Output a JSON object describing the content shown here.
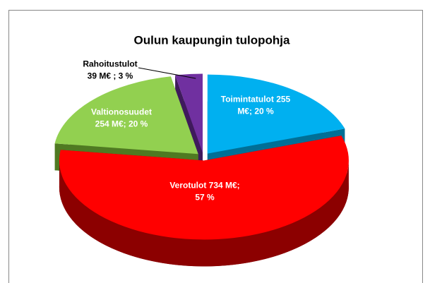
{
  "chart_data": {
    "type": "pie3d",
    "title": "Oulun kaupungin tulopohja",
    "categories": [
      "Toimintatulot",
      "Verotulot",
      "Valtionosuudet",
      "Rahoitustulot"
    ],
    "values": [
      255,
      734,
      254,
      39
    ],
    "value_labels": [
      [
        "Toimintatulot 255",
        "M€; 20 %"
      ],
      [
        "Verotulot 734 M€;",
        "57 %"
      ],
      [
        "Valtionosuudet",
        "254 M€; 20 %"
      ],
      [
        "Rahoitustulot",
        "39 M€ ; 3 %"
      ]
    ],
    "colors": [
      "#00b0f0",
      "#ff0000",
      "#92d050",
      "#7030a0"
    ],
    "side_colors": [
      "#006f96",
      "#8c0000",
      "#4f7a22",
      "#3f1a5c"
    ]
  }
}
